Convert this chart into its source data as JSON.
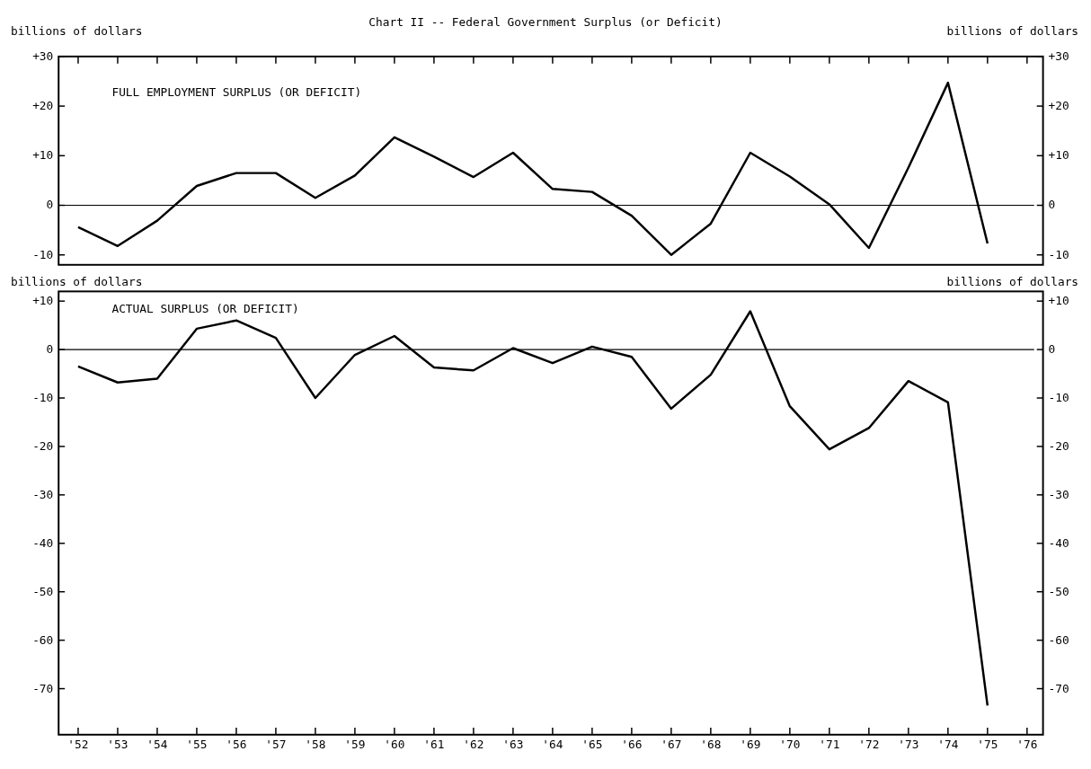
{
  "chart_data": [
    {
      "type": "line",
      "title": "Chart II -- Federal Government Surplus (or Deficit)",
      "ylabel": "billions of dollars",
      "y2label": "billions of dollars",
      "categories": [
        null,
        null,
        null,
        null,
        null,
        null,
        null,
        null,
        null,
        null,
        null,
        null,
        null,
        null,
        null,
        null,
        null,
        null,
        null,
        null,
        null,
        null,
        null,
        null,
        null
      ],
      "series": [
        {
          "name": "FULL EMPLOYMENT SURPLUS (OR DEFICIT)",
          "color": "#000000",
          "values": [
            -4.4,
            -8.2,
            -3.1,
            3.9,
            6.5,
            6.5,
            1.5,
            6,
            13.7,
            9.8,
            5.7,
            10.6,
            3.3,
            2.7,
            -2.1,
            -10,
            -3.7,
            10.6,
            5.8,
            0.2,
            -8.6,
            7.6,
            24.7,
            -7.7,
            null
          ]
        }
      ],
      "ylim": [
        -12,
        30
      ],
      "yticks": [
        {
          "value": 30,
          "label": "+30"
        },
        {
          "value": 20,
          "label": "+20"
        },
        {
          "value": 10,
          "label": "+10"
        },
        0,
        -10
      ],
      "y2lim": [
        -12,
        30
      ],
      "y2ticks": [
        {
          "value": 30,
          "label": "+30"
        },
        {
          "value": 20,
          "label": "+20"
        },
        {
          "value": 10,
          "label": "+10"
        },
        0,
        -10
      ],
      "ref_lines": [
        {
          "axis": "y",
          "value": 0,
          "color": "#000000"
        }
      ],
      "tick_labels": "y",
      "legend": false,
      "grid": false,
      "marker": "none",
      "line_style": "solid"
    },
    {
      "type": "line",
      "ylabel": "billions of dollars",
      "y2label": "billions of dollars",
      "categories": [
        "'52",
        "'53",
        "'54",
        "'55",
        "'56",
        "'57",
        "'58",
        "'59",
        "'60",
        "'61",
        "'62",
        "'63",
        "'64",
        "'65",
        "'66",
        "'67",
        "'68",
        "'69",
        "'70",
        "'71",
        "'72",
        "'73",
        "'74",
        "'75",
        "'76"
      ],
      "series": [
        {
          "name": "ACTUAL SURPLUS (OR DEFICIT)",
          "color": "#000000",
          "values": [
            -3.5,
            -6.8,
            -6,
            4.3,
            6,
            2.4,
            -10,
            -1.1,
            2.8,
            -3.7,
            -4.3,
            0.3,
            -2.8,
            0.6,
            -1.5,
            -12.2,
            -5.2,
            7.9,
            -11.7,
            -20.6,
            -16.2,
            -6.5,
            -10.9,
            -73.5,
            null
          ]
        }
      ],
      "ylim": [
        -79.5,
        12
      ],
      "yticks": [
        {
          "value": 10,
          "label": "+10"
        },
        0,
        -10,
        -20,
        -30,
        -40,
        -50,
        -60,
        -70
      ],
      "y2lim": [
        -79.5,
        12
      ],
      "y2ticks": [
        {
          "value": 10,
          "label": "+10"
        },
        0,
        -10,
        -20,
        -30,
        -40,
        -50,
        -60,
        -70
      ],
      "ref_lines": [
        {
          "axis": "y",
          "value": 0,
          "color": "#000000"
        }
      ],
      "legend": false,
      "grid": false,
      "marker": "none",
      "line_style": "solid"
    }
  ]
}
